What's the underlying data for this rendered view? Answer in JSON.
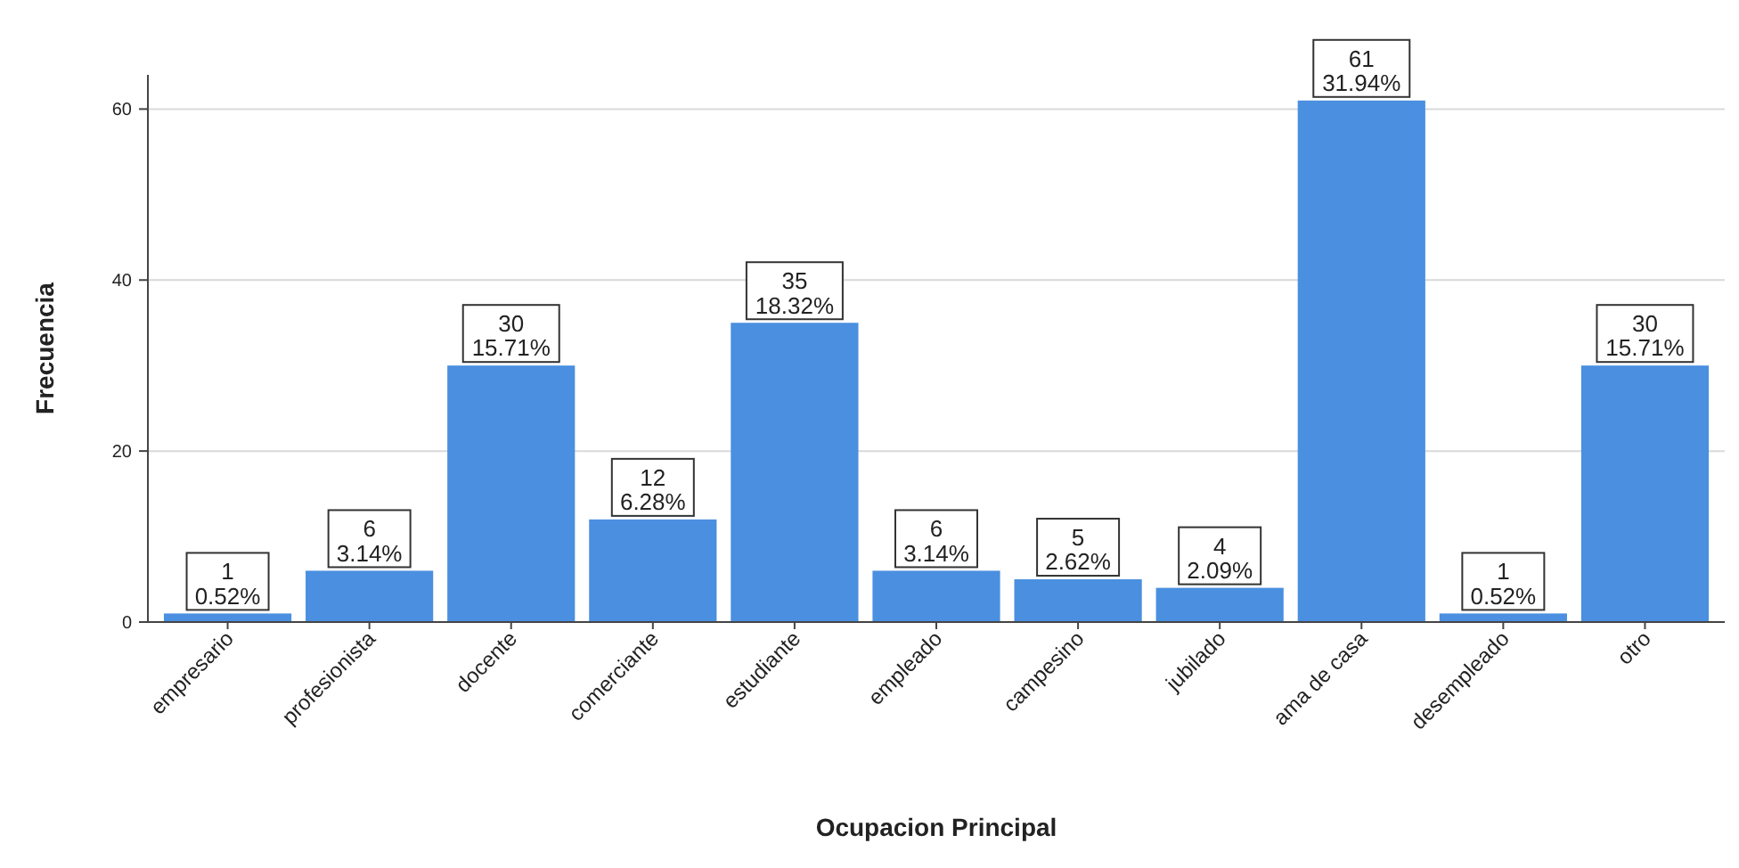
{
  "chart_data": {
    "type": "bar",
    "xlabel": "Ocupacion Principal",
    "ylabel": "Frecuencia",
    "categories": [
      "empresario",
      "profesionista",
      "docente",
      "comerciante",
      "estudiante",
      "empleado",
      "campesino",
      "jubilado",
      "ama de casa",
      "desempleado",
      "otro"
    ],
    "values": [
      1,
      6,
      30,
      12,
      35,
      6,
      5,
      4,
      61,
      1,
      30
    ],
    "value_labels": [
      "1\n0.52%",
      "6\n3.14%",
      "30\n15.71%",
      "12\n6.28%",
      "35\n18.32%",
      "6\n3.14%",
      "5\n2.62%",
      "4\n2.09%",
      "61\n31.94%",
      "1\n0.52%",
      "30\n15.71%"
    ],
    "color": "#4a8fe0",
    "ylim": [
      0,
      64
    ],
    "yticks": [
      0,
      20,
      40,
      60
    ],
    "grid": "y"
  }
}
